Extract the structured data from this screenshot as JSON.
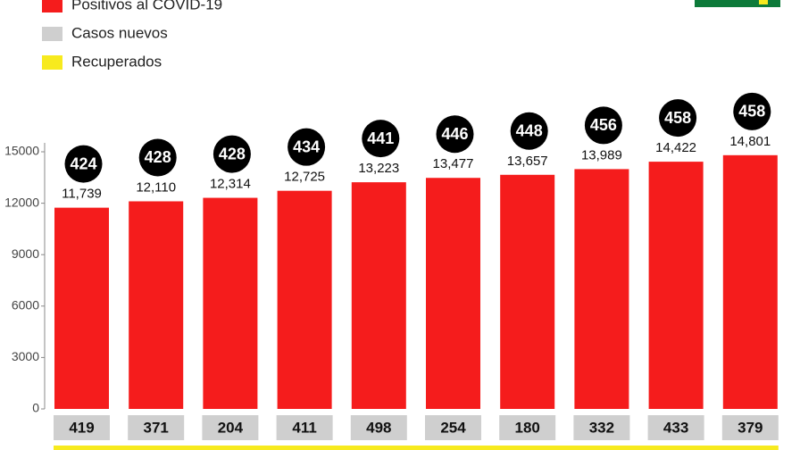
{
  "chart_data": {
    "type": "bar",
    "ylim": [
      0,
      15000
    ],
    "yticks": [
      0,
      3000,
      6000,
      9000,
      12000,
      15000
    ],
    "series": [
      {
        "name": "Positivos al COVID-19",
        "color": "#f51c1c",
        "values": [
          11739,
          12110,
          12314,
          12725,
          13223,
          13477,
          13657,
          13989,
          14422,
          14801
        ],
        "value_labels": [
          "11,739",
          "12,110",
          "12,314",
          "12,725",
          "13,223",
          "13,477",
          "13,657",
          "13,989",
          "14,422",
          "14,801"
        ]
      },
      {
        "name": "Casos nuevos",
        "color": "#cfcfcf",
        "values": [
          419,
          371,
          204,
          411,
          498,
          254,
          180,
          332,
          433,
          379
        ]
      },
      {
        "name": "Recuperados",
        "color": "#f7ea1e"
      }
    ],
    "badges": {
      "color": "#000000",
      "values": [
        424,
        428,
        428,
        434,
        441,
        446,
        448,
        456,
        458,
        458
      ]
    }
  }
}
